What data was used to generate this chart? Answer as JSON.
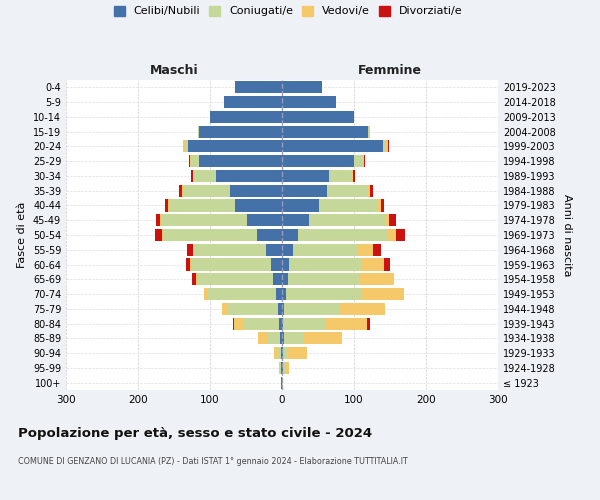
{
  "age_groups": [
    "100+",
    "95-99",
    "90-94",
    "85-89",
    "80-84",
    "75-79",
    "70-74",
    "65-69",
    "60-64",
    "55-59",
    "50-54",
    "45-49",
    "40-44",
    "35-39",
    "30-34",
    "25-29",
    "20-24",
    "15-19",
    "10-14",
    "5-9",
    "0-4"
  ],
  "birth_years": [
    "≤ 1923",
    "1924-1928",
    "1929-1933",
    "1934-1938",
    "1939-1943",
    "1944-1948",
    "1949-1953",
    "1954-1958",
    "1959-1963",
    "1964-1968",
    "1969-1973",
    "1974-1978",
    "1979-1983",
    "1984-1988",
    "1989-1993",
    "1994-1998",
    "1999-2003",
    "2004-2008",
    "2009-2013",
    "2014-2018",
    "2019-2023"
  ],
  "male": {
    "celibi": [
      1,
      1,
      2,
      3,
      4,
      5,
      8,
      12,
      15,
      22,
      35,
      48,
      65,
      72,
      92,
      115,
      130,
      115,
      100,
      80,
      65
    ],
    "coniugati": [
      1,
      2,
      5,
      18,
      50,
      70,
      95,
      105,
      110,
      100,
      130,
      120,
      92,
      65,
      30,
      10,
      5,
      2,
      0,
      0,
      0
    ],
    "vedovi": [
      0,
      1,
      4,
      12,
      12,
      8,
      5,
      3,
      3,
      2,
      2,
      2,
      2,
      2,
      2,
      3,
      2,
      0,
      0,
      0,
      0
    ],
    "divorziati": [
      0,
      0,
      0,
      0,
      2,
      0,
      0,
      5,
      6,
      8,
      10,
      5,
      3,
      4,
      2,
      1,
      1,
      0,
      0,
      0,
      0
    ]
  },
  "female": {
    "nubili": [
      0,
      1,
      1,
      3,
      2,
      3,
      6,
      8,
      10,
      15,
      22,
      38,
      52,
      62,
      65,
      100,
      140,
      120,
      100,
      75,
      55
    ],
    "coniugate": [
      1,
      4,
      6,
      28,
      58,
      78,
      105,
      100,
      100,
      90,
      125,
      105,
      82,
      58,
      32,
      12,
      5,
      2,
      0,
      0,
      0
    ],
    "vedove": [
      1,
      5,
      28,
      52,
      58,
      62,
      58,
      48,
      32,
      22,
      12,
      6,
      4,
      2,
      2,
      2,
      2,
      0,
      0,
      0,
      0
    ],
    "divorziate": [
      0,
      0,
      0,
      0,
      4,
      0,
      0,
      0,
      8,
      10,
      12,
      10,
      4,
      4,
      2,
      1,
      1,
      0,
      0,
      0,
      0
    ]
  },
  "colors": {
    "celibi": "#4472a8",
    "coniugati": "#c5d89a",
    "vedovi": "#f5c96a",
    "divorziati": "#cc1111"
  },
  "legend_labels": [
    "Celibi/Nubili",
    "Coniugati/e",
    "Vedovi/e",
    "Divorziati/e"
  ],
  "title": "Popolazione per età, sesso e stato civile - 2024",
  "subtitle": "COMUNE DI GENZANO DI LUCANIA (PZ) - Dati ISTAT 1° gennaio 2024 - Elaborazione TUTTITALIA.IT",
  "header_left": "Maschi",
  "header_right": "Femmine",
  "ylabel_left": "Fasce di età",
  "ylabel_right": "Anni di nascita",
  "xlim": 300,
  "bg_color": "#eef2f7",
  "plot_bg": "#ffffff"
}
